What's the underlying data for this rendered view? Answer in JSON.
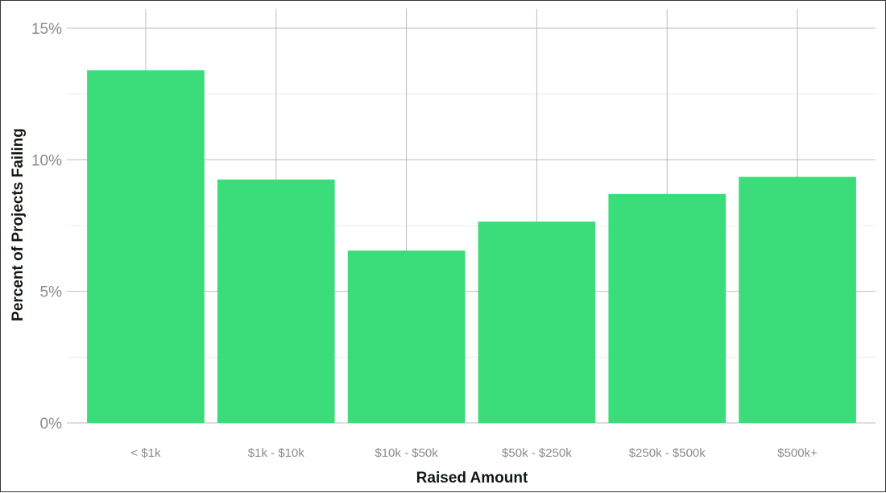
{
  "chart_data": {
    "type": "bar",
    "title": "",
    "xlabel": "Raised Amount",
    "ylabel": "Percent of Projects Failing",
    "categories": [
      "< $1k",
      "$1k - $10k",
      "$10k - $50k",
      "$50k - $250k",
      "$250k - $500k",
      "$500k+"
    ],
    "values": [
      13.4,
      9.25,
      6.55,
      7.65,
      8.7,
      9.35
    ],
    "ylim": [
      0,
      15
    ],
    "yticks": [
      0,
      5,
      10,
      15
    ],
    "ytick_labels": [
      "0%",
      "5%",
      "10%",
      "15%"
    ],
    "grid": true,
    "bar_color": "#3bdc7a",
    "grid_color": "#bdbdbd",
    "minor_grid_color": "#ececec"
  }
}
